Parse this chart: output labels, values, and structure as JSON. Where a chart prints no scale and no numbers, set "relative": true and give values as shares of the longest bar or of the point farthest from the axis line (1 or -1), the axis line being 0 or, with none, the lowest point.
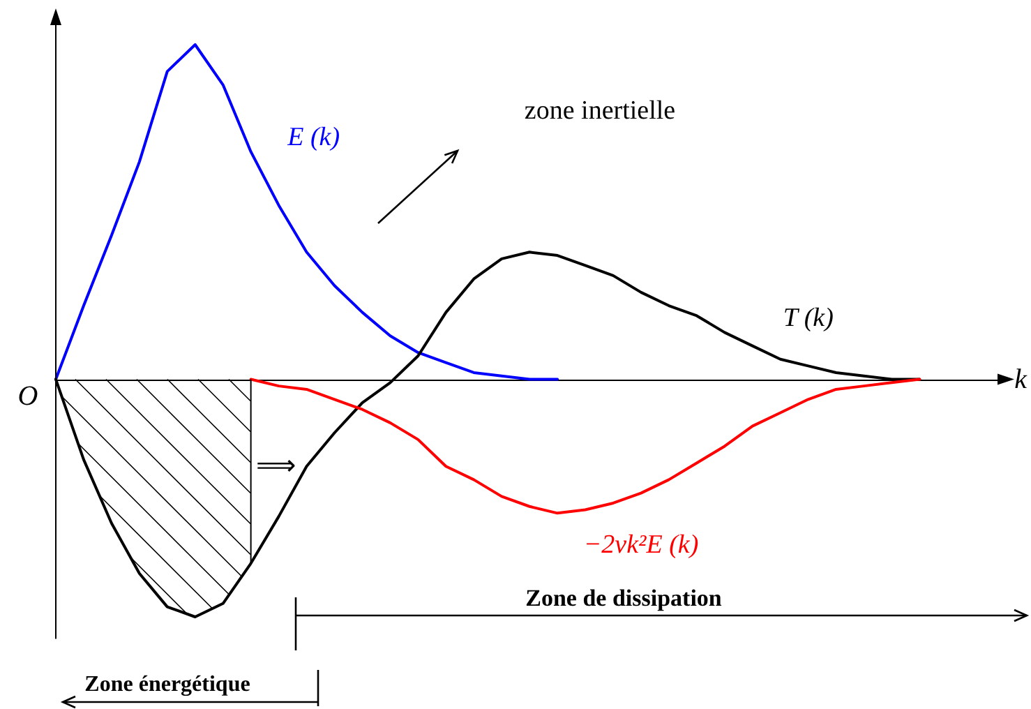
{
  "chart_data": {
    "type": "line",
    "relative": true,
    "xlabel": "k",
    "categories": [
      null,
      null,
      null,
      null,
      null,
      null,
      null,
      null,
      null,
      null,
      null,
      null,
      null,
      null,
      null,
      null,
      null,
      null,
      null,
      null,
      null,
      null,
      null,
      null,
      null,
      null,
      null,
      null,
      null,
      null,
      null,
      null,
      null,
      null,
      null
    ],
    "series": [
      {
        "name": "E (k)",
        "color": "#0000ff",
        "values": [
          0,
          0.22,
          0.43,
          0.65,
          0.92,
          1,
          0.88,
          0.68,
          0.52,
          0.38,
          0.28,
          0.2,
          0.13,
          0.08,
          0.05,
          0.02,
          0.01,
          0,
          0,
          null,
          null,
          null,
          null,
          null,
          null,
          null,
          null,
          null,
          null,
          null,
          null,
          null,
          null,
          null,
          null
        ]
      },
      {
        "name": "T (k)",
        "color": "#000000",
        "values": [
          0,
          -0.24,
          -0.43,
          -0.58,
          -0.68,
          -0.71,
          -0.67,
          -0.55,
          -0.41,
          -0.26,
          -0.16,
          -0.07,
          -0.01,
          0.07,
          0.2,
          0.3,
          0.36,
          0.38,
          0.37,
          0.34,
          0.31,
          0.26,
          0.22,
          0.19,
          0.14,
          0.1,
          0.06,
          0.04,
          0.02,
          0.01,
          0,
          0,
          null,
          null,
          null
        ]
      },
      {
        "name": "−2νk²E (k)",
        "color": "#ff0000",
        "values": [
          null,
          null,
          null,
          null,
          null,
          null,
          null,
          0,
          -0.02,
          -0.03,
          -0.06,
          -0.09,
          -0.13,
          -0.18,
          -0.26,
          -0.3,
          -0.35,
          -0.38,
          -0.4,
          -0.39,
          -0.37,
          -0.34,
          -0.3,
          -0.25,
          -0.2,
          -0.14,
          -0.1,
          -0.06,
          -0.03,
          -0.02,
          -0.01,
          0,
          null,
          null,
          null
        ]
      }
    ],
    "annotations": [
      "O",
      "zone inertielle",
      "⟹",
      "Zone de dissipation",
      "Zone énergétique"
    ],
    "grid": false,
    "legend": false,
    "marker": "none",
    "line_style": "solid"
  }
}
